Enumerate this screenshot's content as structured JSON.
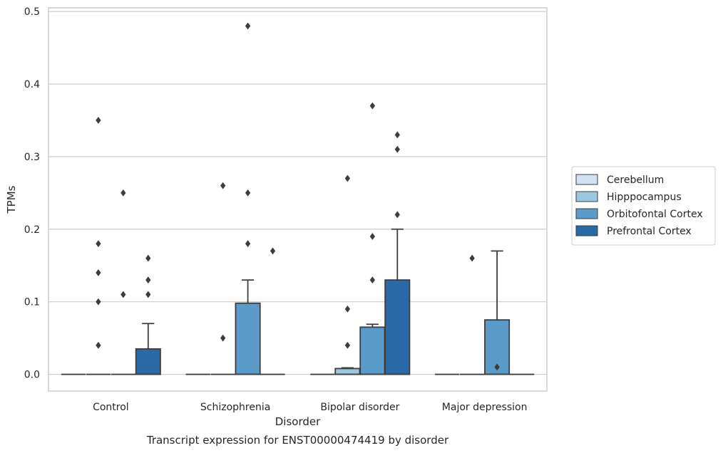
{
  "caption": "Transcript expression for ENST00000474419 by disorder",
  "chart_data": {
    "type": "box",
    "title": "",
    "xlabel": "Disorder",
    "ylabel": "TPMs",
    "ylim": [
      -0.023,
      0.505
    ],
    "yticks": [
      0.0,
      0.1,
      0.2,
      0.3,
      0.4,
      0.5
    ],
    "ytick_labels": [
      "0.0",
      "0.1",
      "0.2",
      "0.3",
      "0.4",
      "0.5"
    ],
    "grid": "horizontal",
    "legend_position": "right",
    "categories": [
      "Control",
      "Schizophrenia",
      "Bipolar disorder",
      "Major depression"
    ],
    "series": [
      {
        "name": "Cerebellum",
        "color": "#d1e2f2",
        "boxes": [
          {
            "q1": 0,
            "median": 0,
            "q3": 0,
            "whisker_low": 0,
            "whisker_high": 0,
            "outliers": []
          },
          {
            "q1": 0,
            "median": 0,
            "q3": 0,
            "whisker_low": 0,
            "whisker_high": 0,
            "outliers": []
          },
          {
            "q1": 0,
            "median": 0,
            "q3": 0,
            "whisker_low": 0,
            "whisker_high": 0,
            "outliers": []
          },
          {
            "q1": 0,
            "median": 0,
            "q3": 0,
            "whisker_low": 0,
            "whisker_high": 0,
            "outliers": []
          }
        ]
      },
      {
        "name": "Hipppocampus",
        "color": "#9ac8e0",
        "boxes": [
          {
            "q1": 0,
            "median": 0,
            "q3": 0,
            "whisker_low": 0,
            "whisker_high": 0,
            "outliers": [
              0.18,
              0.14,
              0.1,
              0.04,
              0.35
            ]
          },
          {
            "q1": 0,
            "median": 0,
            "q3": 0,
            "whisker_low": 0,
            "whisker_high": 0,
            "outliers": [
              0.26,
              0.05
            ]
          },
          {
            "q1": 0,
            "median": 0,
            "q3": 0.008,
            "whisker_low": 0,
            "whisker_high": 0.009,
            "outliers": [
              0.27,
              0.09,
              0.04
            ]
          },
          {
            "q1": 0,
            "median": 0,
            "q3": 0,
            "whisker_low": 0,
            "whisker_high": 0,
            "outliers": [
              0.16
            ]
          }
        ]
      },
      {
        "name": "Orbitofontal Cortex",
        "color": "#5b9bc9",
        "boxes": [
          {
            "q1": 0,
            "median": 0,
            "q3": 0,
            "whisker_low": 0,
            "whisker_high": 0,
            "outliers": [
              0.25,
              0.11
            ]
          },
          {
            "q1": 0,
            "median": 0,
            "q3": 0.098,
            "whisker_low": 0,
            "whisker_high": 0.13,
            "outliers": [
              0.48,
              0.25,
              0.18
            ]
          },
          {
            "q1": 0,
            "median": 0,
            "q3": 0.065,
            "whisker_low": 0,
            "whisker_high": 0.069,
            "outliers": [
              0.37,
              0.19,
              0.13
            ]
          },
          {
            "q1": 0,
            "median": 0,
            "q3": 0.075,
            "whisker_low": 0,
            "whisker_high": 0.17,
            "outliers": [
              0.01
            ]
          }
        ]
      },
      {
        "name": "Prefrontal Cortex",
        "color": "#2a69a8",
        "boxes": [
          {
            "q1": 0,
            "median": 0,
            "q3": 0.035,
            "whisker_low": 0,
            "whisker_high": 0.07,
            "outliers": [
              0.16,
              0.13,
              0.11
            ]
          },
          {
            "q1": 0,
            "median": 0,
            "q3": 0,
            "whisker_low": 0,
            "whisker_high": 0,
            "outliers": [
              0.17
            ]
          },
          {
            "q1": 0,
            "median": 0,
            "q3": 0.13,
            "whisker_low": 0,
            "whisker_high": 0.2,
            "outliers": [
              0.33,
              0.31,
              0.22
            ]
          },
          {
            "q1": 0,
            "median": 0,
            "q3": 0,
            "whisker_low": 0,
            "whisker_high": 0,
            "outliers": []
          }
        ]
      }
    ]
  }
}
